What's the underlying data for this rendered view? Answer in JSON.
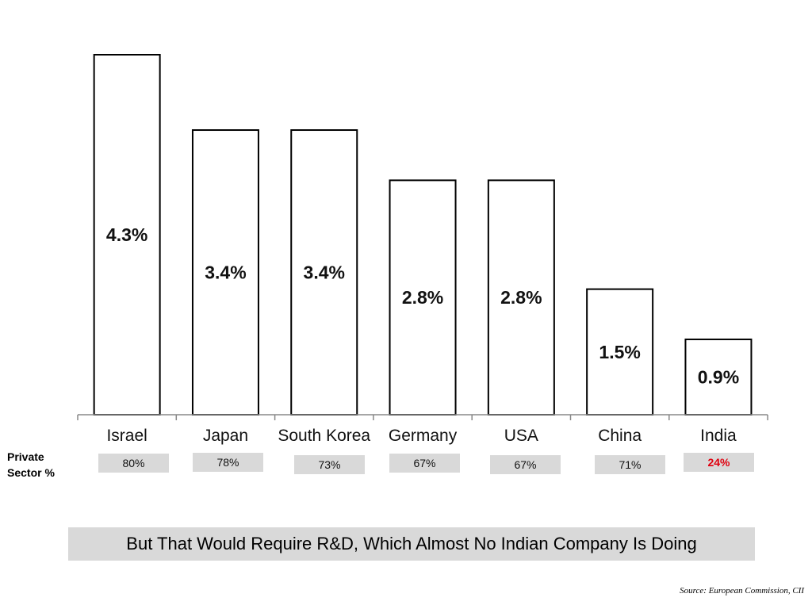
{
  "chart_data": {
    "type": "bar",
    "categories": [
      "Israel",
      "Japan",
      "South Korea",
      "Germany",
      "USA",
      "China",
      "India"
    ],
    "values": [
      4.3,
      3.4,
      3.4,
      2.8,
      2.8,
      1.5,
      0.9
    ],
    "value_labels": [
      "4.3%",
      "3.4%",
      "3.4%",
      "2.8%",
      "2.8%",
      "1.5%",
      "0.9%"
    ],
    "ylim": [
      0,
      4.3
    ],
    "grid": false
  },
  "private_sector": {
    "label_line1": "Private",
    "label_line2": "Sector %",
    "values": [
      "80%",
      "78%",
      "73%",
      "67%",
      "67%",
      "71%",
      "24%"
    ],
    "highlight_color": "#e0000f"
  },
  "conclusion": "But That Would Require R&D, Which Almost No Indian Company Is Doing",
  "source": "Source: European Commission, CII"
}
